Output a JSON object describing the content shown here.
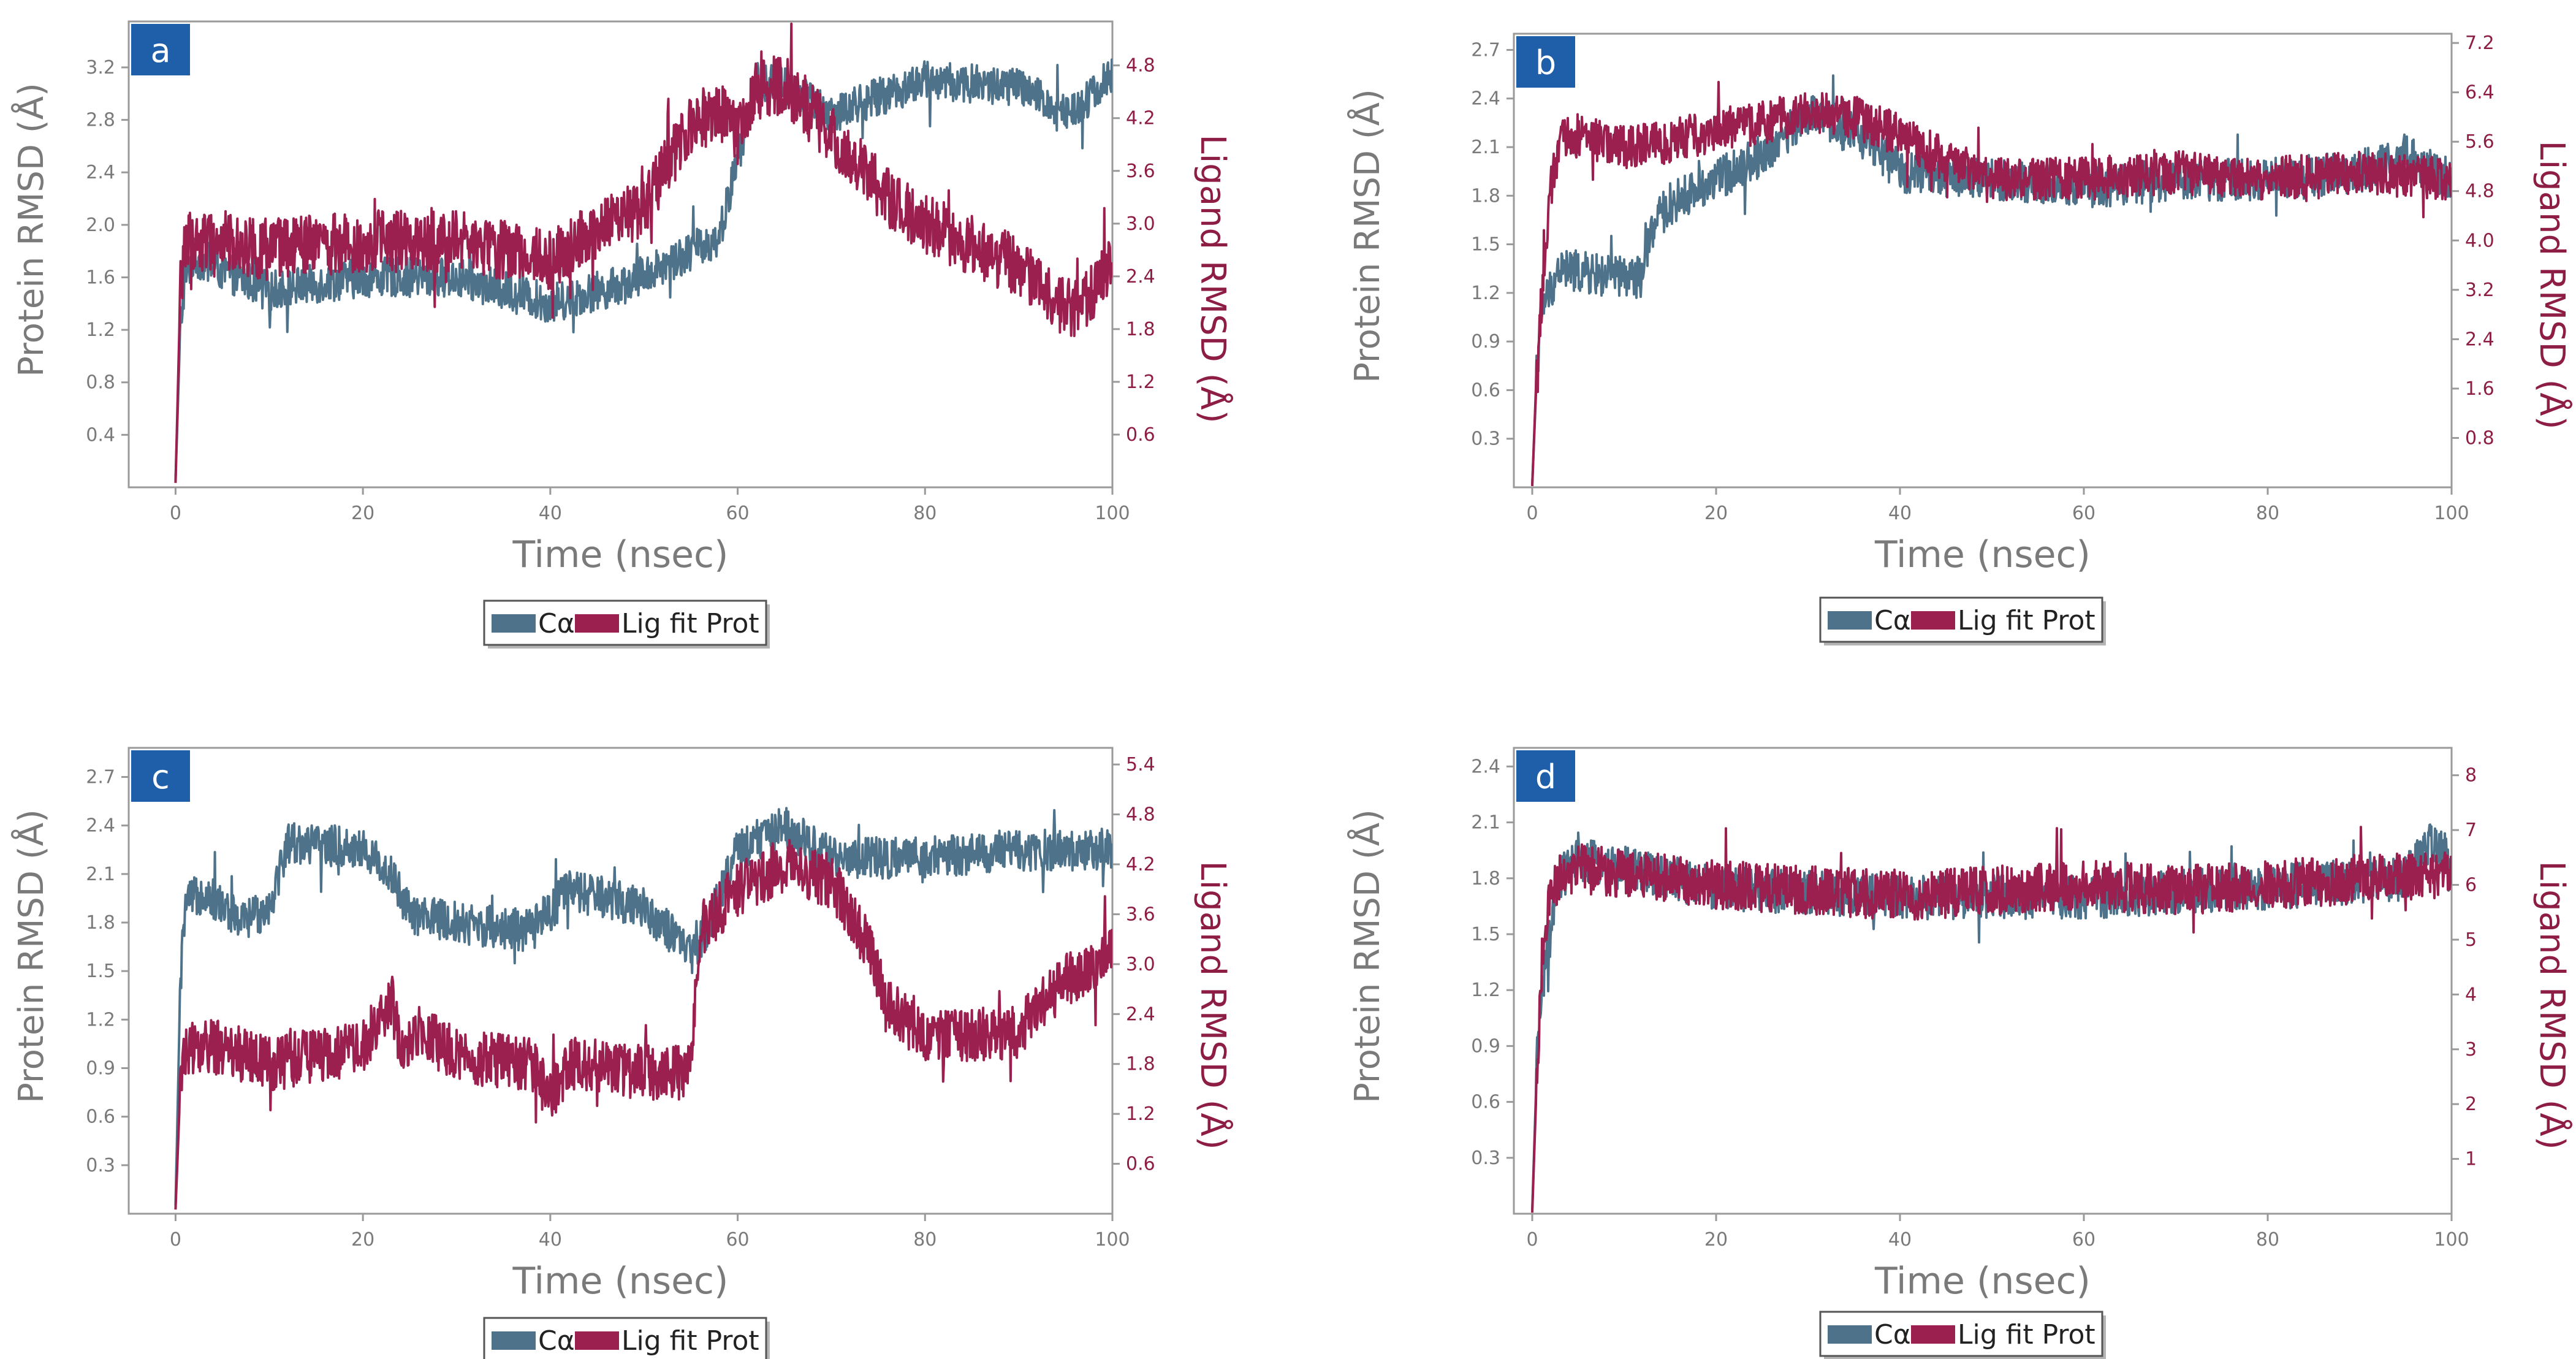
{
  "colors": {
    "protein": "#4d7289",
    "ligand": "#9b1f4f",
    "label_bg": "#1f5ea8",
    "frame": "#9a9a9a"
  },
  "chart_data": [
    {
      "panel": "a",
      "type": "line",
      "xlabel": "Time (nsec)",
      "ylabel": "Protein RMSD (Å)",
      "ylabel_right": "Ligand RMSD (Å)",
      "xlim": [
        -5,
        100
      ],
      "ylim": [
        0,
        3.55
      ],
      "ylim_right": [
        0,
        5.3
      ],
      "xticks": [
        "0",
        "20",
        "40",
        "60",
        "80",
        "100"
      ],
      "yticks": [
        "0.4",
        "0.8",
        "1.2",
        "1.6",
        "2.0",
        "2.4",
        "2.8",
        "3.2"
      ],
      "yticks_right": [
        "0.6",
        "1.2",
        "1.8",
        "2.4",
        "3.0",
        "3.6",
        "4.2",
        "4.8"
      ],
      "legend": [
        "Cα",
        "Lig fit Prot"
      ],
      "series": [
        {
          "name": "Cα",
          "axis": "left",
          "noise": 0.15,
          "x": [
            0,
            0.5,
            1,
            2,
            5,
            10,
            20,
            30,
            40,
            48,
            55,
            58,
            60,
            62,
            65,
            70,
            80,
            90,
            95,
            98,
            100
          ],
          "y": [
            0.05,
            1.2,
            1.6,
            1.75,
            1.65,
            1.5,
            1.6,
            1.6,
            1.4,
            1.55,
            1.8,
            1.9,
            2.5,
            3.1,
            3.05,
            2.85,
            3.1,
            3.05,
            2.85,
            3.0,
            3.15
          ]
        },
        {
          "name": "Lig fit Prot",
          "axis": "right",
          "noise": 0.35,
          "x": [
            0,
            0.5,
            1,
            5,
            10,
            20,
            30,
            40,
            50,
            55,
            58,
            60,
            62,
            65,
            70,
            75,
            80,
            90,
            95,
            98,
            100
          ],
          "y": [
            0.05,
            2.2,
            2.8,
            2.8,
            2.7,
            2.8,
            2.8,
            2.6,
            3.2,
            4.1,
            4.3,
            4.0,
            4.5,
            4.6,
            4.0,
            3.4,
            3.0,
            2.5,
            2.0,
            2.2,
            2.6
          ]
        }
      ]
    },
    {
      "panel": "b",
      "type": "line",
      "xlabel": "Time (nsec)",
      "ylabel": "Protein RMSD (Å)",
      "ylabel_right": "Ligand RMSD (Å)",
      "xlim": [
        -2,
        100
      ],
      "ylim": [
        0,
        2.8
      ],
      "ylim_right": [
        0,
        7.35
      ],
      "xticks": [
        "0",
        "20",
        "40",
        "60",
        "80",
        "100"
      ],
      "yticks": [
        "0.3",
        "0.6",
        "0.9",
        "1.2",
        "1.5",
        "1.8",
        "2.1",
        "2.4",
        "2.7"
      ],
      "yticks_right": [
        "0.8",
        "1.6",
        "2.4",
        "3.2",
        "4.0",
        "4.8",
        "5.6",
        "6.4",
        "7.2"
      ],
      "legend": [
        "Cα",
        "Lig fit Prot"
      ],
      "series": [
        {
          "name": "Cα",
          "axis": "left",
          "noise": 0.13,
          "x": [
            0,
            0.5,
            1,
            3,
            8,
            12,
            13,
            15,
            20,
            25,
            30,
            35,
            40,
            50,
            60,
            70,
            80,
            90,
            95,
            100
          ],
          "y": [
            0.02,
            0.7,
            1.1,
            1.35,
            1.3,
            1.3,
            1.6,
            1.75,
            1.9,
            2.05,
            2.3,
            2.2,
            1.95,
            1.9,
            1.85,
            1.9,
            1.9,
            1.95,
            2.05,
            1.9
          ]
        },
        {
          "name": "Lig fit Prot",
          "axis": "right",
          "noise": 0.35,
          "x": [
            0,
            0.5,
            1,
            2,
            3,
            5,
            10,
            15,
            20,
            25,
            30,
            35,
            40,
            45,
            50,
            60,
            70,
            80,
            90,
            100
          ],
          "y": [
            0.02,
            2.0,
            3.0,
            4.8,
            5.6,
            5.7,
            5.5,
            5.6,
            5.8,
            5.9,
            6.1,
            6.0,
            5.7,
            5.3,
            5.0,
            5.0,
            5.1,
            5.0,
            5.1,
            5.0
          ]
        }
      ]
    },
    {
      "panel": "c",
      "type": "line",
      "xlabel": "Time (nsec)",
      "ylabel": "Protein RMSD (Å)",
      "ylabel_right": "Ligand RMSD (Å)",
      "xlim": [
        -5,
        100
      ],
      "ylim": [
        0,
        2.88
      ],
      "ylim_right": [
        0,
        5.6
      ],
      "xticks": [
        "0",
        "20",
        "40",
        "60",
        "80",
        "100"
      ],
      "yticks": [
        "0.3",
        "0.6",
        "0.9",
        "1.2",
        "1.5",
        "1.8",
        "2.1",
        "2.4",
        "2.7"
      ],
      "yticks_right": [
        "0.6",
        "1.2",
        "1.8",
        "2.4",
        "3.0",
        "3.6",
        "4.2",
        "4.8",
        "5.4"
      ],
      "legend": [
        "Cα",
        "Lig fit Prot"
      ],
      "series": [
        {
          "name": "Cα",
          "axis": "left",
          "noise": 0.13,
          "x": [
            0,
            0.5,
            1,
            3,
            7,
            10,
            12,
            20,
            23,
            25,
            30,
            38,
            42,
            50,
            55,
            57,
            60,
            65,
            70,
            80,
            90,
            100
          ],
          "y": [
            0.05,
            1.4,
            1.9,
            2.0,
            1.8,
            1.9,
            2.3,
            2.25,
            2.1,
            1.85,
            1.8,
            1.75,
            2.0,
            1.9,
            1.6,
            1.8,
            2.25,
            2.4,
            2.2,
            2.2,
            2.25,
            2.25
          ]
        },
        {
          "name": "Lig fit Prot",
          "axis": "right",
          "noise": 0.33,
          "x": [
            0,
            0.5,
            1,
            5,
            10,
            20,
            23,
            24,
            26,
            30,
            38,
            40,
            42,
            50,
            55,
            56,
            60,
            65,
            70,
            74,
            76,
            80,
            90,
            95,
            100
          ],
          "y": [
            0.05,
            1.5,
            2.0,
            2.0,
            1.8,
            2.0,
            2.6,
            2.0,
            2.2,
            1.9,
            1.8,
            1.4,
            1.8,
            1.7,
            1.7,
            3.4,
            3.9,
            4.2,
            4.0,
            3.2,
            2.5,
            2.1,
            2.2,
            2.8,
            3.1
          ]
        }
      ]
    },
    {
      "panel": "d",
      "type": "line",
      "xlabel": "Time (nsec)",
      "ylabel": "Protein RMSD (Å)",
      "ylabel_right": "Ligand RMSD (Å)",
      "xlim": [
        -2,
        100
      ],
      "ylim": [
        0,
        2.5
      ],
      "ylim_right": [
        0,
        8.5
      ],
      "xticks": [
        "0",
        "20",
        "40",
        "60",
        "80",
        "100"
      ],
      "yticks": [
        "0.3",
        "0.6",
        "0.9",
        "1.2",
        "1.5",
        "1.8",
        "2.1",
        "2.4"
      ],
      "yticks_right": [
        "1",
        "2",
        "3",
        "4",
        "5",
        "6",
        "7",
        "8"
      ],
      "legend": [
        "Cα",
        "Lig fit Prot"
      ],
      "series": [
        {
          "name": "Cα",
          "axis": "left",
          "noise": 0.12,
          "x": [
            0,
            0.5,
            1,
            2,
            3,
            5,
            10,
            20,
            40,
            60,
            80,
            95,
            98,
            100
          ],
          "y": [
            0.02,
            0.8,
            1.2,
            1.5,
            1.8,
            1.9,
            1.85,
            1.75,
            1.7,
            1.7,
            1.75,
            1.8,
            2.0,
            1.9
          ]
        },
        {
          "name": "Lig fit Prot",
          "axis": "right",
          "noise": 0.45,
          "x": [
            0,
            0.5,
            1,
            2,
            3,
            5,
            10,
            20,
            30,
            40,
            50,
            60,
            70,
            80,
            90,
            100
          ],
          "y": [
            0.02,
            2.5,
            4.5,
            5.8,
            6.2,
            6.3,
            6.2,
            6.0,
            5.9,
            5.8,
            5.9,
            6.0,
            5.9,
            6.0,
            6.1,
            6.2
          ]
        }
      ]
    }
  ]
}
